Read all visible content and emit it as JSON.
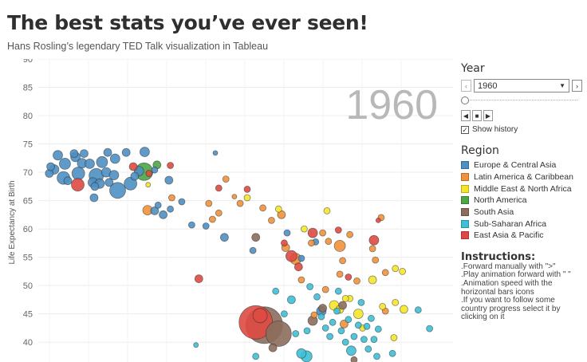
{
  "header": {
    "title": "The best stats you’ve ever seen!",
    "subtitle": "Hans Rosling’s legendary TED Talk visualization in Tableau"
  },
  "controls": {
    "year_heading": "Year",
    "year_value": "1960",
    "prev_icon": "chevron-left-icon",
    "next_icon": "chevron-right-icon",
    "show_history_label": "Show history",
    "show_history_checked": true,
    "slider_position": 0
  },
  "legend": {
    "heading": "Region",
    "items": [
      {
        "label": "Europe & Central Asia",
        "color": "#4e8fc2"
      },
      {
        "label": "Latin America & Caribbean",
        "color": "#f0923a"
      },
      {
        "label": "Middle East & North Africa",
        "color": "#f5e52a"
      },
      {
        "label": "North America",
        "color": "#4ea648"
      },
      {
        "label": "South Asia",
        "color": "#8c6d5c"
      },
      {
        "label": "Sub-Saharan Africa",
        "color": "#3ebfd6"
      },
      {
        "label": "East Asia & Pacific",
        "color": "#de4a43"
      }
    ]
  },
  "instructions": {
    "heading": "Instructions:",
    "lines": [
      ".Forward manually with \">\"",
      ".Play animation forward with \"  \"",
      ".Animation speed with the",
      "horizontal bars icons",
      ".If you want to follow some",
      "country progress select it by",
      "clicking on it"
    ]
  },
  "chart_data": {
    "type": "scatter",
    "title": "",
    "xlabel": "",
    "ylabel": "Life Expectancy at Birth",
    "year_watermark": "1960",
    "yticks": [
      40,
      45,
      50,
      55,
      60,
      65,
      70,
      75,
      80,
      85,
      90
    ],
    "ylim": [
      36.5,
      90
    ],
    "grid": true,
    "series": [
      {
        "name": "Europe & Central Asia",
        "color": "#4e8fc2",
        "points": [
          {
            "x": 0.05,
            "y": 69.8,
            "s": 5
          },
          {
            "x": 0.1,
            "y": 71,
            "s": 5
          },
          {
            "x": 0.22,
            "y": 70.5,
            "s": 6
          },
          {
            "x": 0.35,
            "y": 73,
            "s": 6
          },
          {
            "x": 0.55,
            "y": 69,
            "s": 8
          },
          {
            "x": 0.6,
            "y": 71.5,
            "s": 7
          },
          {
            "x": 0.7,
            "y": 68.5,
            "s": 5
          },
          {
            "x": 0.92,
            "y": 73.3,
            "s": 5
          },
          {
            "x": 0.97,
            "y": 72.7,
            "s": 6
          },
          {
            "x": 1.07,
            "y": 69.8,
            "s": 8
          },
          {
            "x": 1.2,
            "y": 71.6,
            "s": 6
          },
          {
            "x": 1.27,
            "y": 73.3,
            "s": 5
          },
          {
            "x": 1.47,
            "y": 71.5,
            "s": 6
          },
          {
            "x": 1.58,
            "y": 68.2,
            "s": 6
          },
          {
            "x": 1.7,
            "y": 69.4,
            "s": 9
          },
          {
            "x": 1.82,
            "y": 68,
            "s": 6
          },
          {
            "x": 1.9,
            "y": 71.8,
            "s": 7
          },
          {
            "x": 2.05,
            "y": 70,
            "s": 6
          },
          {
            "x": 2.1,
            "y": 73.5,
            "s": 5
          },
          {
            "x": 2.32,
            "y": 69.5,
            "s": 6
          },
          {
            "x": 2.36,
            "y": 72.4,
            "s": 6
          },
          {
            "x": 2.45,
            "y": 66.8,
            "s": 10
          },
          {
            "x": 2.15,
            "y": 68.2,
            "s": 5
          },
          {
            "x": 1.65,
            "y": 67.5,
            "s": 5
          },
          {
            "x": 1.62,
            "y": 65.5,
            "s": 5
          },
          {
            "x": 2.75,
            "y": 73.5,
            "s": 5
          },
          {
            "x": 2.9,
            "y": 68,
            "s": 8
          },
          {
            "x": 3.05,
            "y": 69.3,
            "s": 5
          },
          {
            "x": 3.2,
            "y": 70.2,
            "s": 6
          },
          {
            "x": 3.4,
            "y": 73.6,
            "s": 6
          },
          {
            "x": 3.75,
            "y": 63.2,
            "s": 5
          },
          {
            "x": 3.75,
            "y": 70.4,
            "s": 4
          },
          {
            "x": 3.87,
            "y": 64.2,
            "s": 4
          },
          {
            "x": 4.05,
            "y": 62.5,
            "s": 5
          },
          {
            "x": 4.25,
            "y": 68.6,
            "s": 5
          },
          {
            "x": 4.3,
            "y": 63.5,
            "s": 4
          },
          {
            "x": 4.7,
            "y": 64.8,
            "s": 4
          },
          {
            "x": 5.05,
            "y": 60.7,
            "s": 4
          },
          {
            "x": 5.55,
            "y": 60.5,
            "s": 4
          },
          {
            "x": 5.88,
            "y": 73.4,
            "s": 3
          },
          {
            "x": 6.2,
            "y": 58.5,
            "s": 5
          },
          {
            "x": 7.2,
            "y": 56.2,
            "s": 4
          },
          {
            "x": 8.4,
            "y": 59.3,
            "s": 4
          },
          {
            "x": 8.9,
            "y": 54.8,
            "s": 4
          },
          {
            "x": 9.4,
            "y": 57.7,
            "s": 4
          },
          {
            "x": 9.6,
            "y": 45.5,
            "s": 6
          }
        ]
      },
      {
        "name": "Latin America & Caribbean",
        "color": "#f0923a",
        "points": [
          {
            "x": 3.5,
            "y": 63.3,
            "s": 6
          },
          {
            "x": 4.35,
            "y": 65.5,
            "s": 4
          },
          {
            "x": 5.65,
            "y": 64.5,
            "s": 4
          },
          {
            "x": 5.78,
            "y": 61.7,
            "s": 4
          },
          {
            "x": 6.0,
            "y": 62.8,
            "s": 4
          },
          {
            "x": 6.25,
            "y": 68.8,
            "s": 4
          },
          {
            "x": 6.55,
            "y": 65.7,
            "s": 3
          },
          {
            "x": 6.75,
            "y": 64.5,
            "s": 4
          },
          {
            "x": 7.55,
            "y": 63.7,
            "s": 4
          },
          {
            "x": 7.85,
            "y": 61.5,
            "s": 4
          },
          {
            "x": 8.2,
            "y": 62.5,
            "s": 5
          },
          {
            "x": 8.35,
            "y": 56.7,
            "s": 5
          },
          {
            "x": 8.7,
            "y": 54.7,
            "s": 7
          },
          {
            "x": 8.9,
            "y": 51.0,
            "s": 4
          },
          {
            "x": 9.25,
            "y": 57.5,
            "s": 4
          },
          {
            "x": 9.65,
            "y": 59.3,
            "s": 4
          },
          {
            "x": 9.85,
            "y": 57.8,
            "s": 4
          },
          {
            "x": 10.25,
            "y": 57.0,
            "s": 7
          },
          {
            "x": 10.35,
            "y": 54.4,
            "s": 4
          },
          {
            "x": 10.6,
            "y": 59.0,
            "s": 4
          },
          {
            "x": 10.25,
            "y": 52.0,
            "s": 4
          },
          {
            "x": 9.75,
            "y": 49.3,
            "s": 4
          },
          {
            "x": 10.4,
            "y": 43.2,
            "s": 5
          },
          {
            "x": 10.85,
            "y": 50.8,
            "s": 4
          },
          {
            "x": 11.4,
            "y": 56.5,
            "s": 4
          },
          {
            "x": 11.7,
            "y": 62.0,
            "s": 4
          },
          {
            "x": 11.5,
            "y": 54.5,
            "s": 4
          },
          {
            "x": 11.85,
            "y": 52.3,
            "s": 4
          },
          {
            "x": 9.35,
            "y": 44.8,
            "s": 4
          },
          {
            "x": 11.85,
            "y": 45.5,
            "s": 4
          }
        ]
      },
      {
        "name": "Middle East & North Africa",
        "color": "#f5e52a",
        "points": [
          {
            "x": 3.52,
            "y": 67.8,
            "s": 3
          },
          {
            "x": 7.0,
            "y": 65.5,
            "s": 4
          },
          {
            "x": 8.1,
            "y": 63.5,
            "s": 4
          },
          {
            "x": 9.0,
            "y": 60.0,
            "s": 4
          },
          {
            "x": 9.8,
            "y": 63.2,
            "s": 4
          },
          {
            "x": 10.6,
            "y": 47.7,
            "s": 4
          },
          {
            "x": 10.05,
            "y": 46.5,
            "s": 6
          },
          {
            "x": 10.25,
            "y": 45.8,
            "s": 5
          },
          {
            "x": 10.45,
            "y": 47.7,
            "s": 4
          },
          {
            "x": 10.9,
            "y": 45.0,
            "s": 6
          },
          {
            "x": 11.4,
            "y": 51.0,
            "s": 5
          },
          {
            "x": 11.05,
            "y": 42.5,
            "s": 4
          },
          {
            "x": 12.2,
            "y": 53.0,
            "s": 4
          },
          {
            "x": 12.45,
            "y": 52.5,
            "s": 4
          },
          {
            "x": 12.2,
            "y": 47.0,
            "s": 4
          },
          {
            "x": 12.5,
            "y": 45.8,
            "s": 5
          },
          {
            "x": 12.15,
            "y": 40.8,
            "s": 4
          },
          {
            "x": 11.75,
            "y": 46.3,
            "s": 4
          }
        ]
      },
      {
        "name": "North America",
        "color": "#4ea648",
        "points": [
          {
            "x": 3.38,
            "y": 70.1,
            "s": 11
          },
          {
            "x": 3.83,
            "y": 71.3,
            "s": 5
          }
        ]
      },
      {
        "name": "South Asia",
        "color": "#8c6d5c",
        "points": [
          {
            "x": 7.6,
            "y": 43.0,
            "s": 23
          },
          {
            "x": 8.1,
            "y": 41.5,
            "s": 16
          },
          {
            "x": 7.9,
            "y": 39.0,
            "s": 5
          },
          {
            "x": 9.3,
            "y": 43.8,
            "s": 6
          },
          {
            "x": 9.65,
            "y": 46.0,
            "s": 5
          },
          {
            "x": 10.35,
            "y": 46.5,
            "s": 5
          },
          {
            "x": 7.3,
            "y": 58.5,
            "s": 5
          },
          {
            "x": 10.75,
            "y": 36.9,
            "s": 4
          }
        ]
      },
      {
        "name": "Sub-Saharan Africa",
        "color": "#3ebfd6",
        "points": [
          {
            "x": 5.2,
            "y": 39.5,
            "s": 3
          },
          {
            "x": 7.3,
            "y": 37.5,
            "s": 4
          },
          {
            "x": 8.0,
            "y": 49.0,
            "s": 4
          },
          {
            "x": 8.3,
            "y": 45.0,
            "s": 4
          },
          {
            "x": 8.55,
            "y": 47.5,
            "s": 5
          },
          {
            "x": 8.7,
            "y": 41.5,
            "s": 4
          },
          {
            "x": 8.9,
            "y": 38.0,
            "s": 6
          },
          {
            "x": 9.08,
            "y": 37.5,
            "s": 7
          },
          {
            "x": 9.1,
            "y": 42.0,
            "s": 4
          },
          {
            "x": 9.2,
            "y": 49.8,
            "s": 4
          },
          {
            "x": 9.45,
            "y": 48.0,
            "s": 4
          },
          {
            "x": 9.6,
            "y": 44.5,
            "s": 4
          },
          {
            "x": 9.75,
            "y": 42.5,
            "s": 4
          },
          {
            "x": 9.9,
            "y": 41.0,
            "s": 4
          },
          {
            "x": 10.0,
            "y": 43.5,
            "s": 4
          },
          {
            "x": 10.15,
            "y": 45.5,
            "s": 4
          },
          {
            "x": 10.2,
            "y": 49.0,
            "s": 4
          },
          {
            "x": 10.3,
            "y": 42.0,
            "s": 4
          },
          {
            "x": 10.45,
            "y": 40.0,
            "s": 4
          },
          {
            "x": 10.55,
            "y": 44.0,
            "s": 4
          },
          {
            "x": 10.65,
            "y": 38.5,
            "s": 6
          },
          {
            "x": 10.75,
            "y": 41.0,
            "s": 4
          },
          {
            "x": 10.9,
            "y": 43.0,
            "s": 4
          },
          {
            "x": 11.0,
            "y": 47.0,
            "s": 4
          },
          {
            "x": 11.1,
            "y": 40.5,
            "s": 4
          },
          {
            "x": 11.2,
            "y": 42.8,
            "s": 4
          },
          {
            "x": 11.25,
            "y": 38.8,
            "s": 4
          },
          {
            "x": 11.35,
            "y": 44.2,
            "s": 4
          },
          {
            "x": 11.45,
            "y": 40.5,
            "s": 4
          },
          {
            "x": 11.55,
            "y": 37.5,
            "s": 4
          },
          {
            "x": 11.6,
            "y": 42.3,
            "s": 4
          },
          {
            "x": 12.1,
            "y": 38.0,
            "s": 4
          },
          {
            "x": 13.0,
            "y": 45.7,
            "s": 4
          },
          {
            "x": 13.4,
            "y": 42.4,
            "s": 4
          }
        ]
      },
      {
        "name": "East Asia & Pacific",
        "color": "#de4a43",
        "points": [
          {
            "x": 1.05,
            "y": 67.8,
            "s": 8
          },
          {
            "x": 3.0,
            "y": 71.0,
            "s": 5
          },
          {
            "x": 3.55,
            "y": 69.8,
            "s": 4
          },
          {
            "x": 4.3,
            "y": 71.2,
            "s": 4
          },
          {
            "x": 5.3,
            "y": 51.2,
            "s": 5
          },
          {
            "x": 6.0,
            "y": 67.2,
            "s": 4
          },
          {
            "x": 7.0,
            "y": 67.0,
            "s": 4
          },
          {
            "x": 7.3,
            "y": 43.5,
            "s": 21
          },
          {
            "x": 7.45,
            "y": 44.7,
            "s": 9
          },
          {
            "x": 8.3,
            "y": 57.5,
            "s": 4
          },
          {
            "x": 8.55,
            "y": 55.2,
            "s": 7
          },
          {
            "x": 8.8,
            "y": 53.3,
            "s": 5
          },
          {
            "x": 9.3,
            "y": 59.3,
            "s": 6
          },
          {
            "x": 10.2,
            "y": 59.8,
            "s": 4
          },
          {
            "x": 11.45,
            "y": 58.0,
            "s": 6
          },
          {
            "x": 11.6,
            "y": 61.5,
            "s": 3
          },
          {
            "x": 10.55,
            "y": 51.5,
            "s": 4
          }
        ]
      }
    ]
  }
}
